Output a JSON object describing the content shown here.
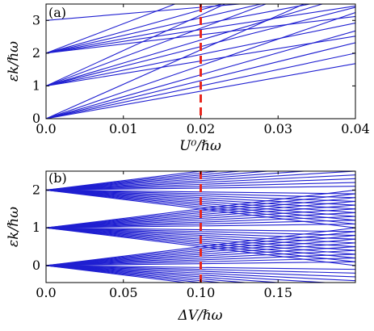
{
  "chart_data": [
    {
      "type": "line",
      "panel_label": "(a)",
      "xlabel": "U⁰/ℏω",
      "ylabel": "εk/ℏω",
      "xlim": [
        0,
        0.04
      ],
      "ylim": [
        0,
        3.5
      ],
      "xticks": [
        0,
        0.01,
        0.02,
        0.03,
        0.04
      ],
      "xtick_labels": [
        "0.0",
        "0.01",
        "0.02",
        "0.03",
        "0.04"
      ],
      "yticks": [
        0,
        1,
        2,
        3
      ],
      "ytick_labels": [
        "0",
        "1",
        "2",
        "3"
      ],
      "grid": false,
      "line_color": "#1f1fd1",
      "marker_color": "#e8271e",
      "vertical_marker_x": 0.02,
      "line_starts": [
        0,
        0,
        0,
        0,
        0,
        0,
        1,
        1,
        1,
        1,
        1,
        1,
        2,
        2,
        2,
        2,
        2,
        2,
        3
      ],
      "line_slopes": [
        42,
        50,
        58,
        67,
        81,
        105,
        38,
        48,
        60,
        70,
        88,
        108,
        28,
        36,
        44,
        54,
        66,
        90,
        20
      ]
    },
    {
      "type": "line",
      "panel_label": "(b)",
      "xlabel": "ΔV/ℏω",
      "ylabel": "εk/ℏω",
      "xlim": [
        0,
        0.2
      ],
      "ylim": [
        -0.45,
        2.5
      ],
      "xticks": [
        0,
        0.05,
        0.1,
        0.15
      ],
      "xtick_labels": [
        "0.0",
        "0.05",
        "0.10",
        "0.15"
      ],
      "yticks": [
        0,
        1,
        2
      ],
      "ytick_labels": [
        "0",
        "1",
        "2"
      ],
      "grid": false,
      "line_color": "#1f1fd1",
      "marker_color": "#e8271e",
      "vertical_marker_x": 0.1,
      "line_starts": [
        0,
        1,
        2
      ],
      "fan_slopes": [
        -4.5,
        -3.5,
        -2.5,
        -1.5,
        -0.5,
        0.5,
        1.5,
        2.5,
        3.5,
        4.5,
        -5,
        -4,
        -3,
        -2,
        -1,
        1,
        2,
        3,
        4,
        5
      ]
    }
  ]
}
